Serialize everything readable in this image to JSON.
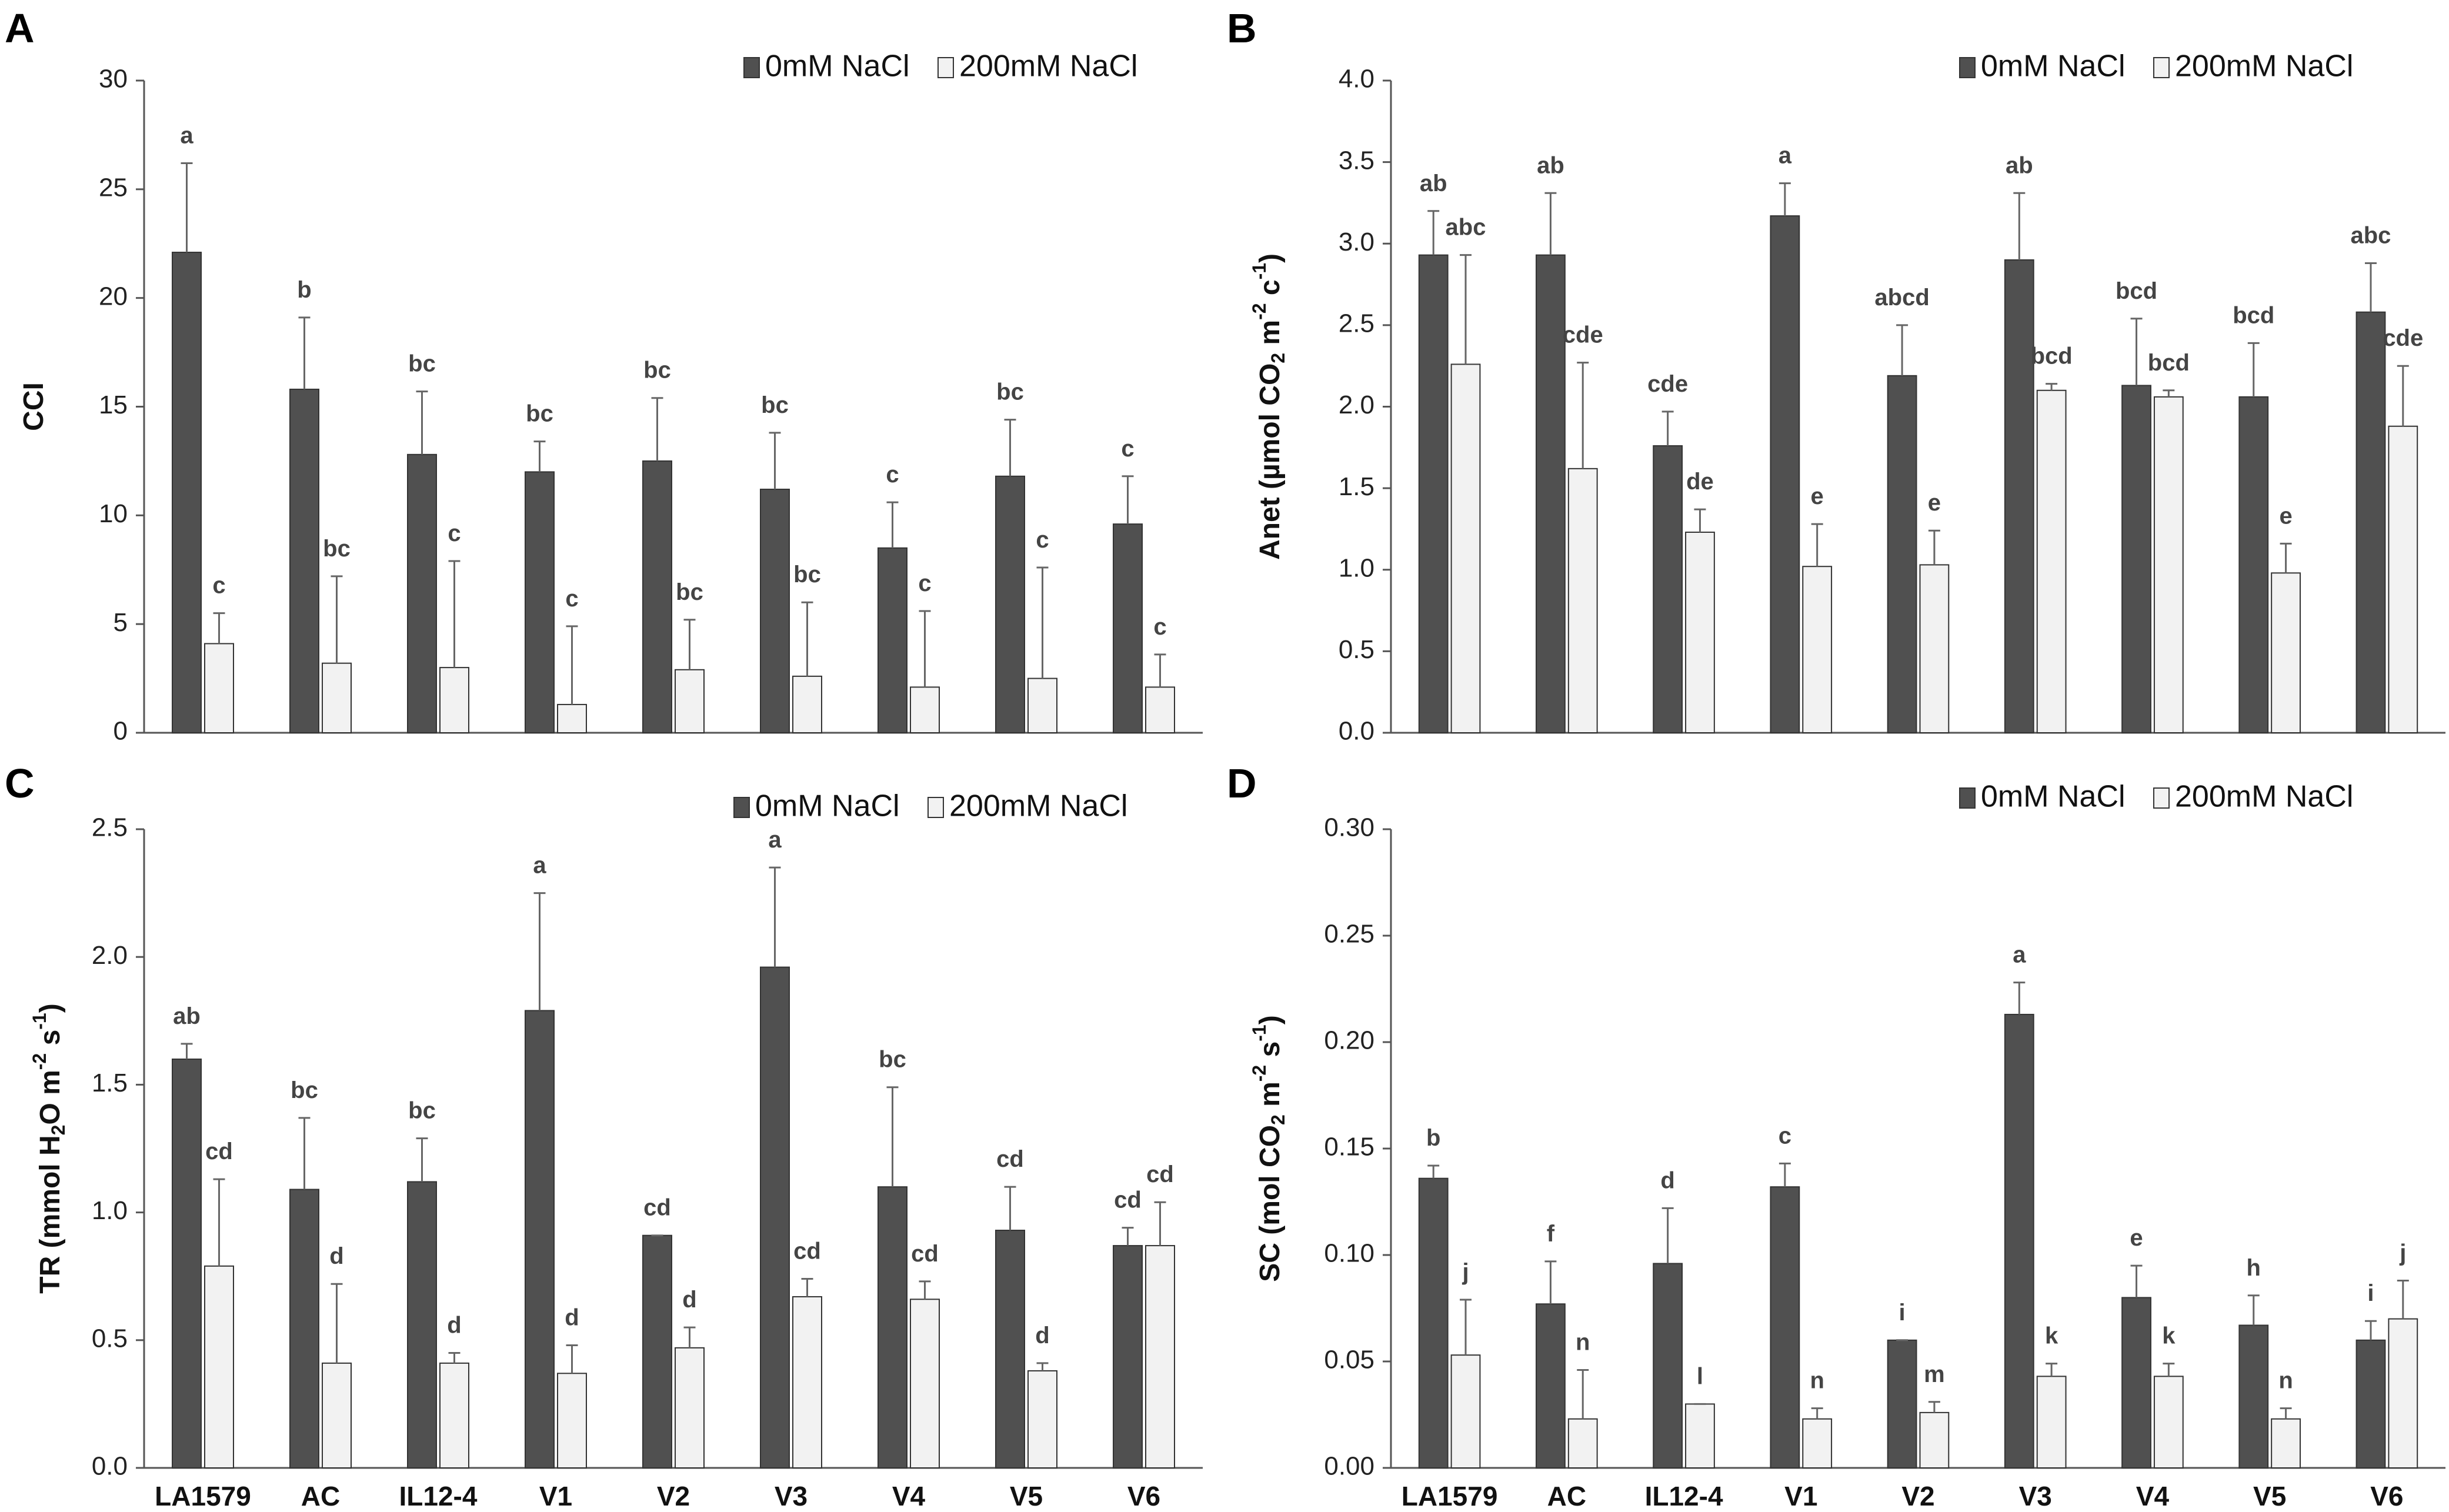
{
  "colors": {
    "ctrl_fill": "#505050",
    "salt_fill": "#f2f2f2",
    "stroke": "#333333",
    "axis": "#555555"
  },
  "chart_data": [
    {
      "panel": "A",
      "type": "bar",
      "ylabel": "CCI",
      "ylim": [
        0,
        30
      ],
      "yticks": [
        0,
        5,
        10,
        15,
        20,
        25,
        30
      ],
      "tick_decimals": 0,
      "categories": [
        "LA1579",
        "AC",
        "IL12-4",
        "V1",
        "V2",
        "V3",
        "V4",
        "V5",
        "V6"
      ],
      "show_category_labels": false,
      "legend_position": "top-right",
      "series": [
        {
          "name": "0mM NaCl",
          "values": [
            22.1,
            15.8,
            12.8,
            12.0,
            12.5,
            11.2,
            8.5,
            11.8,
            9.6
          ],
          "errors": [
            4.1,
            3.3,
            2.9,
            1.4,
            2.9,
            2.6,
            2.1,
            2.6,
            2.2
          ],
          "labels": [
            "a",
            "b",
            "bc",
            "bc",
            "bc",
            "bc",
            "c",
            "bc",
            "c"
          ]
        },
        {
          "name": "200mM NaCl",
          "values": [
            4.1,
            3.2,
            3.0,
            1.3,
            2.9,
            2.6,
            2.1,
            2.5,
            2.1
          ],
          "errors": [
            1.4,
            4.0,
            4.9,
            3.6,
            2.3,
            3.4,
            3.5,
            5.1,
            1.5
          ],
          "labels": [
            "c",
            "bc",
            "c",
            "c",
            "bc",
            "bc",
            "c",
            "c",
            "c"
          ]
        }
      ]
    },
    {
      "panel": "B",
      "type": "bar",
      "ylabel": "Anet (µmol CO2 m-2 c-1)",
      "ylim": [
        0,
        4
      ],
      "yticks": [
        0,
        0.5,
        1,
        1.5,
        2,
        2.5,
        3,
        3.5,
        4
      ],
      "tick_decimals": 1,
      "categories": [
        "LA1579",
        "AC",
        "IL12-4",
        "V1",
        "V2",
        "V3",
        "V4",
        "V5",
        "V6"
      ],
      "show_category_labels": false,
      "legend_position": "top-right",
      "series": [
        {
          "name": "0mM NaCl",
          "values": [
            2.93,
            2.93,
            1.76,
            3.17,
            2.19,
            2.9,
            2.13,
            2.06,
            2.58
          ],
          "errors": [
            0.27,
            0.38,
            0.21,
            0.2,
            0.31,
            0.41,
            0.41,
            0.33,
            0.3
          ],
          "labels": [
            "ab",
            "ab",
            "cde",
            "a",
            "abcd",
            "ab",
            "bcd",
            "bcd",
            "abc"
          ]
        },
        {
          "name": "200mM NaCl",
          "values": [
            2.26,
            1.62,
            1.23,
            1.02,
            1.03,
            2.1,
            2.06,
            0.98,
            1.88
          ],
          "errors": [
            0.67,
            0.65,
            0.14,
            0.26,
            0.21,
            0.04,
            0.04,
            0.18,
            0.37
          ],
          "labels": [
            "abc",
            "cde",
            "de",
            "e",
            "e",
            "bcd",
            "bcd",
            "e",
            "cde"
          ]
        }
      ]
    },
    {
      "panel": "C",
      "type": "bar",
      "ylabel": "TR (mmol H2O m-2 s-1)",
      "ylim": [
        0,
        2.5
      ],
      "yticks": [
        0,
        0.5,
        1,
        1.5,
        2,
        2.5
      ],
      "tick_decimals": 1,
      "categories": [
        "LA1579",
        "AC",
        "IL12-4",
        "V1",
        "V2",
        "V3",
        "V4",
        "V5",
        "V6"
      ],
      "show_category_labels": true,
      "legend_position": "top-right",
      "series": [
        {
          "name": "0mM NaCl",
          "values": [
            1.6,
            1.09,
            1.12,
            1.79,
            0.91,
            1.96,
            1.1,
            0.93,
            0.87
          ],
          "errors": [
            0.06,
            0.28,
            0.17,
            0.46,
            0.0,
            0.39,
            0.39,
            0.17,
            0.07
          ],
          "labels": [
            "ab",
            "bc",
            "bc",
            "a",
            "cd",
            "a",
            "bc",
            "cd",
            "cd"
          ]
        },
        {
          "name": "200mM NaCl",
          "values": [
            0.79,
            0.41,
            0.41,
            0.37,
            0.47,
            0.67,
            0.66,
            0.38,
            0.87
          ],
          "errors": [
            0.34,
            0.31,
            0.04,
            0.11,
            0.08,
            0.07,
            0.07,
            0.03,
            0.17
          ],
          "labels": [
            "cd",
            "d",
            "d",
            "d",
            "d",
            "cd",
            "cd",
            "d",
            "cd"
          ]
        }
      ]
    },
    {
      "panel": "D",
      "type": "bar",
      "ylabel": "SC (mol CO2 m-2 s-1)",
      "ylim": [
        0,
        0.3
      ],
      "yticks": [
        0,
        0.05,
        0.1,
        0.15,
        0.2,
        0.25,
        0.3
      ],
      "tick_decimals": 2,
      "categories": [
        "LA1579",
        "AC",
        "IL12-4",
        "V1",
        "V2",
        "V3",
        "V4",
        "V5",
        "V6"
      ],
      "show_category_labels": true,
      "legend_position": "top-right",
      "series": [
        {
          "name": "0mM NaCl",
          "values": [
            0.136,
            0.077,
            0.096,
            0.132,
            0.06,
            0.213,
            0.08,
            0.067,
            0.06
          ],
          "errors": [
            0.006,
            0.02,
            0.026,
            0.011,
            0.0,
            0.015,
            0.015,
            0.014,
            0.009
          ],
          "labels": [
            "b",
            "f",
            "d",
            "c",
            "i",
            "a",
            "e",
            "h",
            "i"
          ]
        },
        {
          "name": "200mM NaCl",
          "values": [
            0.053,
            0.023,
            0.03,
            0.023,
            0.026,
            0.043,
            0.043,
            0.023,
            0.07
          ],
          "errors": [
            0.026,
            0.023,
            0.0,
            0.005,
            0.005,
            0.006,
            0.006,
            0.005,
            0.018
          ],
          "labels": [
            "j",
            "n",
            "l",
            "n",
            "m",
            "k",
            "k",
            "n",
            "j"
          ]
        }
      ]
    }
  ]
}
